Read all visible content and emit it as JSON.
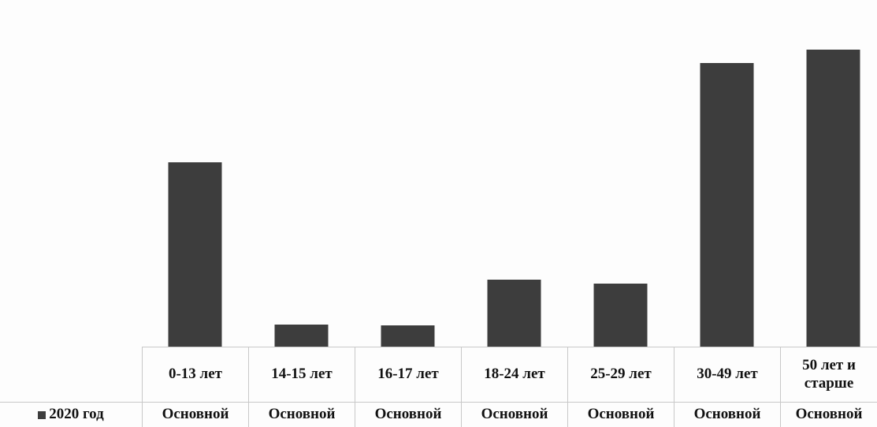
{
  "chart_data": {
    "type": "bar",
    "categories": [
      "0-13 лет",
      "14-15 лет",
      "16-17 лет",
      "18-24 лет",
      "25-29 лет",
      "30-49 лет",
      "50 лет и старше"
    ],
    "series": [
      {
        "name": "2020 год",
        "color": "#3d3d3d",
        "values": [
          234,
          28,
          27,
          85,
          80,
          360,
          377
        ]
      }
    ],
    "table_row": [
      "Основной",
      "Основной",
      "Основной",
      "Основной",
      "Основной",
      "Основной",
      "Основной"
    ],
    "ylim": [
      0,
      400
    ],
    "grid": false
  }
}
